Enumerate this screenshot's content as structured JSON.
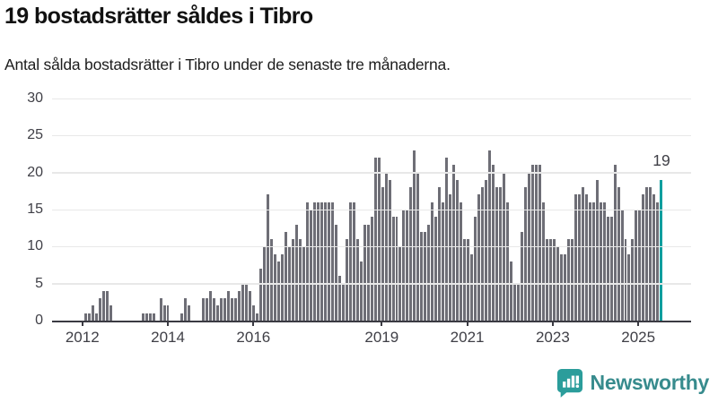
{
  "header": {
    "title": "19 bostadsrätter såldes i Tibro",
    "subtitle": "Antal sålda bostadsrätter i Tibro under de senaste tre månaderna."
  },
  "chart_data": {
    "type": "bar",
    "title": "19 bostadsrätter såldes i Tibro",
    "subtitle": "Antal sålda bostadsrätter i Tibro under de senaste tre månaderna.",
    "xlabel": "",
    "ylabel": "",
    "ylim": [
      0,
      30
    ],
    "yticks": [
      0,
      5,
      10,
      15,
      20,
      25,
      30
    ],
    "grid": true,
    "months_start": "2011-05",
    "months": [
      0,
      0,
      0,
      0,
      0,
      0,
      0,
      0,
      0,
      1,
      1,
      2,
      1,
      3,
      4,
      4,
      2,
      0,
      0,
      0,
      0,
      0,
      0,
      0,
      0,
      1,
      1,
      1,
      1,
      0,
      3,
      2,
      2,
      0,
      0,
      0,
      1,
      3,
      2,
      0,
      0,
      0,
      3,
      3,
      4,
      3,
      2,
      3,
      3,
      4,
      3,
      3,
      4,
      5,
      5,
      4,
      2,
      1,
      7,
      10,
      17,
      11,
      9,
      8,
      9,
      12,
      10,
      11,
      13,
      11,
      10,
      16,
      15,
      16,
      16,
      16,
      16,
      16,
      16,
      13,
      6,
      5,
      11,
      16,
      16,
      11,
      8,
      13,
      13,
      14,
      22,
      22,
      18,
      20,
      19,
      14,
      14,
      10,
      15,
      15,
      18,
      23,
      20,
      12,
      12,
      13,
      16,
      14,
      18,
      16,
      22,
      17,
      21,
      19,
      16,
      11,
      11,
      9,
      14,
      17,
      18,
      19,
      23,
      21,
      18,
      18,
      20,
      16,
      8,
      5,
      5,
      12,
      18,
      20,
      21,
      21,
      21,
      16,
      11,
      11,
      11,
      10,
      9,
      9,
      11,
      11,
      17,
      17,
      18,
      17,
      16,
      16,
      19,
      16,
      16,
      14,
      14,
      21,
      18,
      15,
      11,
      9,
      11,
      15,
      15,
      17,
      18,
      18,
      17,
      16,
      19
    ],
    "xticks": [
      {
        "label": "2012",
        "index": 8
      },
      {
        "label": "2014",
        "index": 32
      },
      {
        "label": "2016",
        "index": 56
      },
      {
        "label": "2019",
        "index": 92
      },
      {
        "label": "2021",
        "index": 116
      },
      {
        "label": "2023",
        "index": 140
      },
      {
        "label": "2025",
        "index": 164
      }
    ],
    "bar_color": "#6e6e76",
    "highlight": {
      "value": 19,
      "label": "19",
      "color": "#0f9e9e"
    },
    "legend": null
  },
  "footer": {
    "brand": "Newsworthy",
    "brand_color": "#378b8d",
    "logo_icon": "newsworthy-chart-bubble-icon",
    "logo_color": "#2b9d9b"
  }
}
